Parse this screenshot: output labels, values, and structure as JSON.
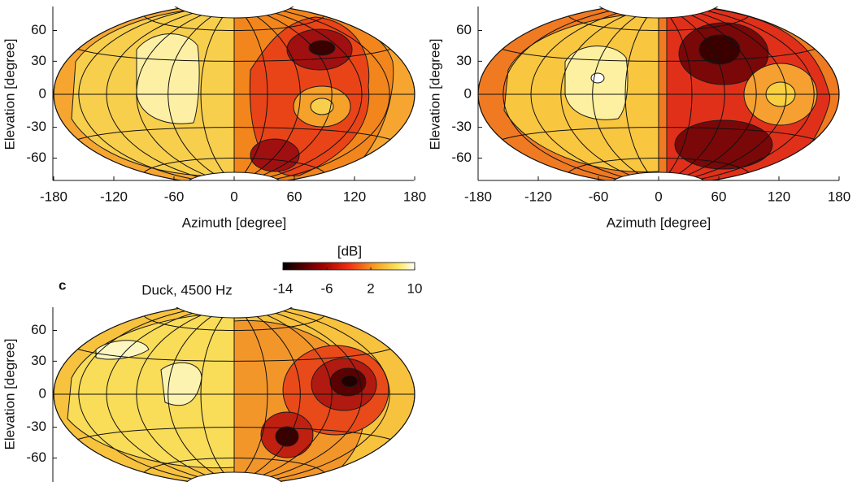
{
  "panels": [
    {
      "xlabel": "Azimuth [degree]",
      "ylabel": "Elevation [degree]",
      "xlim": [
        -180,
        180
      ],
      "ylim": [
        -90,
        90
      ],
      "xticks": [
        -180,
        -120,
        -60,
        0,
        60,
        120,
        180
      ],
      "yticks": [
        60,
        30,
        0,
        -30,
        -60
      ]
    },
    {
      "xlabel": "Azimuth [degree]",
      "ylabel": "Elevation [degree]",
      "xlim": [
        -180,
        180
      ],
      "ylim": [
        -90,
        90
      ],
      "xticks": [
        -180,
        -120,
        -60,
        0,
        60,
        120,
        180
      ],
      "yticks": [
        60,
        30,
        0,
        -30,
        -60
      ]
    },
    {
      "label": "c",
      "title": "Duck, 4500 Hz",
      "ylabel": "Elevation [degree]",
      "xlim": [
        -180,
        180
      ],
      "ylim": [
        -90,
        90
      ],
      "yticks": [
        60,
        30,
        0,
        -30,
        -60
      ]
    }
  ],
  "colorbar": {
    "label": "[dB]",
    "lim": [
      -14,
      10
    ],
    "ticks": [
      -14,
      -6,
      2,
      10
    ]
  }
}
